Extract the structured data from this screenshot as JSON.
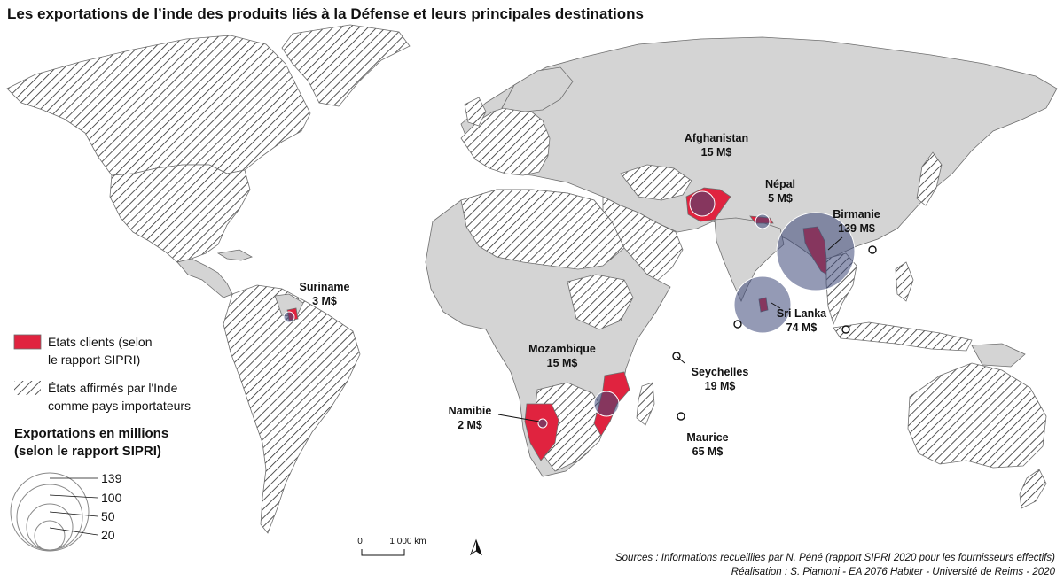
{
  "title": "Les exportations  de l’inde des produits liés à la Défense et leurs principales destinations",
  "colors": {
    "land": "#d4d4d4",
    "border": "#6e6e6e",
    "client": "#e0233f",
    "bubble": "#3d4778",
    "hatch": "#2b2b2b",
    "ocean": "#ffffff"
  },
  "destinations": [
    {
      "name": "Afghanistan",
      "value_label": "15 M$",
      "value": 15
    },
    {
      "name": "Népal",
      "value_label": "5 M$",
      "value": 5
    },
    {
      "name": "Birmanie",
      "value_label": "139 M$",
      "value": 139
    },
    {
      "name": "Sri Lanka",
      "value_label": "74 M$",
      "value": 74
    },
    {
      "name": "Suriname",
      "value_label": "3 M$",
      "value": 3
    },
    {
      "name": "Mozambique",
      "value_label": "15 M$",
      "value": 15
    },
    {
      "name": "Seychelles",
      "value_label": "19 M$",
      "value": 19
    },
    {
      "name": "Namibie",
      "value_label": "2 M$",
      "value": 2
    },
    {
      "name": "Maurice",
      "value_label": "65 M$",
      "value": 65
    }
  ],
  "legend": {
    "client_line1": "Etats clients (selon",
    "client_line2": "le rapport SIPRI)",
    "hatch_line1": "États affirmés par l'Inde",
    "hatch_line2": "comme pays importateurs",
    "size_title_line1": "Exportations en millions",
    "size_title_line2": "(selon le rapport SIPRI)",
    "sizes": [
      "139",
      "100",
      "50",
      "20"
    ]
  },
  "scale": {
    "zero": "0",
    "distance": "1 000 km"
  },
  "sources": "Sources :  Informations recueillies par N. Péné (rapport SIPRI 2020 pour les fournisseurs effectifs)",
  "credits": "Réalisation : S. Piantoni - EA 2076 Habiter - Université de Reims - 2020"
}
